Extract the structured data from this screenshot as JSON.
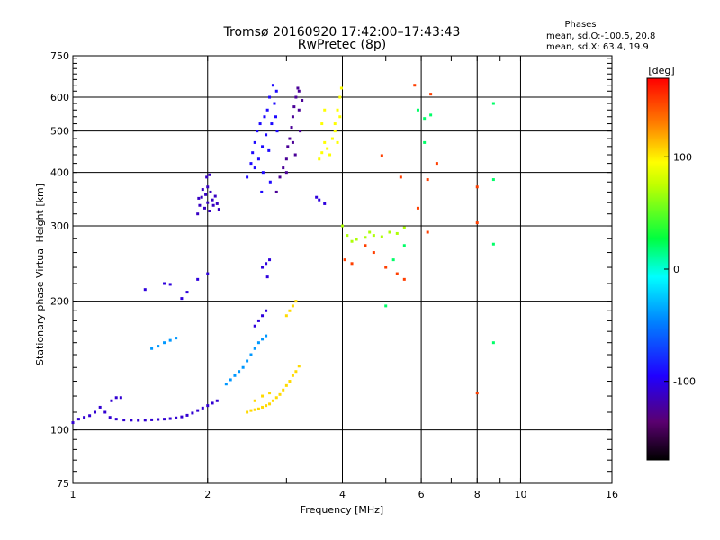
{
  "chart_data": {
    "type": "scatter",
    "title": "Tromsø 20160920 17:42:00–17:43:43",
    "subtitle": "RwPretec (8p)",
    "stats": {
      "heading": "Phases",
      "line1": "mean, sd,O:-100.5, 20.8",
      "line2": "mean, sd,X: 63.4, 19.9"
    },
    "xlabel": "Frequency [MHz]",
    "ylabel": "Stationary phase Virtual Height [km]",
    "x_scale": "log",
    "y_scale": "log",
    "xlim": [
      1,
      16
    ],
    "ylim": [
      75,
      750
    ],
    "x_ticks": [
      1,
      2,
      4,
      6,
      8,
      10,
      16
    ],
    "x_tick_labels": [
      "1",
      "2",
      "4",
      "6",
      "8",
      "10",
      "16"
    ],
    "y_ticks": [
      75,
      100,
      200,
      300,
      400,
      500,
      600,
      750
    ],
    "y_tick_labels": [
      "75",
      "100",
      "200",
      "300",
      "400",
      "500",
      "600",
      "750"
    ],
    "grid": true,
    "colorbar": {
      "label": "[deg]",
      "range": [
        -170,
        170
      ],
      "ticks": [
        100,
        0,
        -100
      ],
      "tick_labels": [
        "100",
        "0",
        "-100"
      ]
    },
    "series": [
      {
        "points": [
          [
            1.0,
            104
          ],
          [
            1.03,
            106
          ],
          [
            1.06,
            107
          ],
          [
            1.09,
            108
          ],
          [
            1.12,
            110
          ],
          [
            1.15,
            113
          ],
          [
            1.18,
            110
          ],
          [
            1.21,
            107
          ],
          [
            1.25,
            106
          ],
          [
            1.3,
            105.5
          ],
          [
            1.35,
            105.4
          ],
          [
            1.4,
            105.3
          ],
          [
            1.45,
            105.4
          ],
          [
            1.5,
            105.6
          ],
          [
            1.55,
            105.8
          ],
          [
            1.6,
            106
          ],
          [
            1.65,
            106.3
          ],
          [
            1.7,
            106.7
          ],
          [
            1.75,
            107.3
          ],
          [
            1.8,
            108.2
          ],
          [
            1.85,
            109.5
          ],
          [
            1.9,
            111
          ],
          [
            1.95,
            112.5
          ],
          [
            2.0,
            114
          ],
          [
            2.05,
            115.5
          ],
          [
            2.1,
            117
          ],
          [
            1.22,
            117
          ],
          [
            1.25,
            119
          ],
          [
            1.28,
            119
          ]
        ],
        "phase": -108
      },
      {
        "points": [
          [
            1.9,
            320
          ],
          [
            1.92,
            335
          ],
          [
            1.94,
            350
          ],
          [
            1.95,
            365
          ],
          [
            1.97,
            330
          ],
          [
            1.98,
            355
          ],
          [
            2.0,
            370
          ],
          [
            2.0,
            340
          ],
          [
            2.02,
            325
          ],
          [
            2.03,
            360
          ],
          [
            2.05,
            345
          ],
          [
            2.06,
            335
          ],
          [
            2.08,
            352
          ],
          [
            2.1,
            338
          ],
          [
            2.12,
            328
          ],
          [
            1.91,
            348
          ],
          [
            1.99,
            390
          ],
          [
            2.02,
            395
          ]
        ],
        "phase": -112
      },
      {
        "points": [
          [
            2.45,
            390
          ],
          [
            2.5,
            420
          ],
          [
            2.52,
            445
          ],
          [
            2.55,
            470
          ],
          [
            2.58,
            500
          ],
          [
            2.6,
            430
          ],
          [
            2.62,
            520
          ],
          [
            2.65,
            460
          ],
          [
            2.68,
            540
          ],
          [
            2.7,
            490
          ],
          [
            2.72,
            560
          ],
          [
            2.75,
            600
          ],
          [
            2.78,
            520
          ],
          [
            2.8,
            640
          ],
          [
            2.82,
            580
          ],
          [
            2.85,
            620
          ],
          [
            2.66,
            400
          ],
          [
            2.74,
            450
          ],
          [
            2.76,
            380
          ],
          [
            2.84,
            540
          ],
          [
            2.55,
            410
          ],
          [
            2.64,
            360
          ],
          [
            2.86,
            500
          ]
        ],
        "phase": -92
      },
      {
        "points": [
          [
            2.85,
            360
          ],
          [
            2.9,
            390
          ],
          [
            2.95,
            410
          ],
          [
            3.0,
            430
          ],
          [
            3.02,
            460
          ],
          [
            3.05,
            480
          ],
          [
            3.08,
            510
          ],
          [
            3.1,
            540
          ],
          [
            3.12,
            570
          ],
          [
            3.15,
            600
          ],
          [
            3.18,
            630
          ],
          [
            3.2,
            560
          ],
          [
            3.22,
            500
          ],
          [
            3.25,
            590
          ],
          [
            3.0,
            400
          ],
          [
            3.14,
            440
          ],
          [
            3.1,
            470
          ],
          [
            3.2,
            620
          ]
        ],
        "phase": -125
      },
      {
        "points": [
          [
            3.55,
            430
          ],
          [
            3.6,
            445
          ],
          [
            3.65,
            470
          ],
          [
            3.7,
            455
          ],
          [
            3.75,
            440
          ],
          [
            3.8,
            480
          ],
          [
            3.85,
            520
          ],
          [
            3.9,
            560
          ],
          [
            3.95,
            600
          ],
          [
            3.98,
            630
          ],
          [
            3.85,
            500
          ],
          [
            3.9,
            470
          ],
          [
            3.6,
            520
          ],
          [
            3.65,
            560
          ],
          [
            3.95,
            540
          ]
        ],
        "phase": 95
      },
      {
        "points": [
          [
            1.5,
            155
          ],
          [
            1.55,
            157
          ],
          [
            1.6,
            160
          ],
          [
            1.65,
            162
          ],
          [
            1.7,
            164
          ],
          [
            2.4,
            140
          ],
          [
            2.45,
            145
          ],
          [
            2.5,
            150
          ],
          [
            2.55,
            155
          ],
          [
            2.6,
            160
          ],
          [
            2.65,
            163
          ],
          [
            2.7,
            166
          ],
          [
            2.2,
            128
          ],
          [
            2.25,
            131
          ],
          [
            2.3,
            134
          ],
          [
            2.35,
            137
          ]
        ],
        "phase": -40
      },
      {
        "points": [
          [
            2.45,
            110
          ],
          [
            2.5,
            111
          ],
          [
            2.55,
            111.5
          ],
          [
            2.6,
            112
          ],
          [
            2.65,
            113
          ],
          [
            2.7,
            114
          ],
          [
            2.75,
            115
          ],
          [
            2.8,
            117
          ],
          [
            2.85,
            119
          ],
          [
            2.9,
            121
          ],
          [
            2.95,
            124
          ],
          [
            3.0,
            127
          ],
          [
            3.05,
            130
          ],
          [
            3.1,
            134
          ],
          [
            3.15,
            137
          ],
          [
            3.2,
            141
          ],
          [
            3.0,
            185
          ],
          [
            3.05,
            190
          ],
          [
            3.1,
            195
          ],
          [
            3.15,
            200
          ],
          [
            2.55,
            117
          ],
          [
            2.65,
            120
          ],
          [
            2.75,
            122
          ]
        ],
        "phase": 105
      },
      {
        "points": [
          [
            2.55,
            175
          ],
          [
            2.6,
            180
          ],
          [
            2.65,
            185
          ],
          [
            2.7,
            190
          ],
          [
            2.65,
            240
          ],
          [
            2.7,
            245
          ],
          [
            2.75,
            250
          ],
          [
            2.72,
            228
          ],
          [
            1.75,
            203
          ],
          [
            1.8,
            210
          ],
          [
            1.9,
            225
          ],
          [
            2.0,
            232
          ],
          [
            1.6,
            220
          ],
          [
            1.65,
            219
          ],
          [
            1.45,
            213
          ],
          [
            3.5,
            350
          ],
          [
            3.55,
            345
          ],
          [
            3.65,
            338
          ]
        ],
        "phase": -105
      },
      {
        "points": [
          [
            4.0,
            300
          ],
          [
            4.1,
            285
          ],
          [
            4.3,
            279
          ],
          [
            4.5,
            282
          ],
          [
            4.7,
            285
          ],
          [
            4.9,
            283
          ],
          [
            5.1,
            290
          ],
          [
            5.3,
            288
          ],
          [
            5.5,
            297
          ],
          [
            4.2,
            276
          ],
          [
            4.6,
            290
          ]
        ],
        "phase": 70
      },
      {
        "points": [
          [
            4.05,
            250
          ],
          [
            4.2,
            245
          ],
          [
            4.5,
            270
          ],
          [
            4.7,
            260
          ],
          [
            5.0,
            240
          ],
          [
            5.3,
            232
          ],
          [
            5.5,
            225
          ],
          [
            6.2,
            290
          ],
          [
            6.5,
            420
          ],
          [
            5.8,
            640
          ],
          [
            6.2,
            385
          ],
          [
            5.4,
            390
          ],
          [
            4.9,
            438
          ],
          [
            8.0,
            305
          ],
          [
            8.0,
            370
          ],
          [
            8.0,
            122
          ],
          [
            5.9,
            330
          ],
          [
            6.3,
            610
          ]
        ],
        "phase": 150
      },
      {
        "points": [
          [
            5.0,
            195
          ],
          [
            5.2,
            250
          ],
          [
            5.5,
            270
          ],
          [
            6.1,
            535
          ],
          [
            6.3,
            545
          ],
          [
            5.9,
            560
          ],
          [
            8.7,
            580
          ],
          [
            8.7,
            385
          ],
          [
            8.7,
            160
          ],
          [
            8.7,
            272
          ],
          [
            6.1,
            470
          ]
        ],
        "phase": 20
      }
    ]
  }
}
